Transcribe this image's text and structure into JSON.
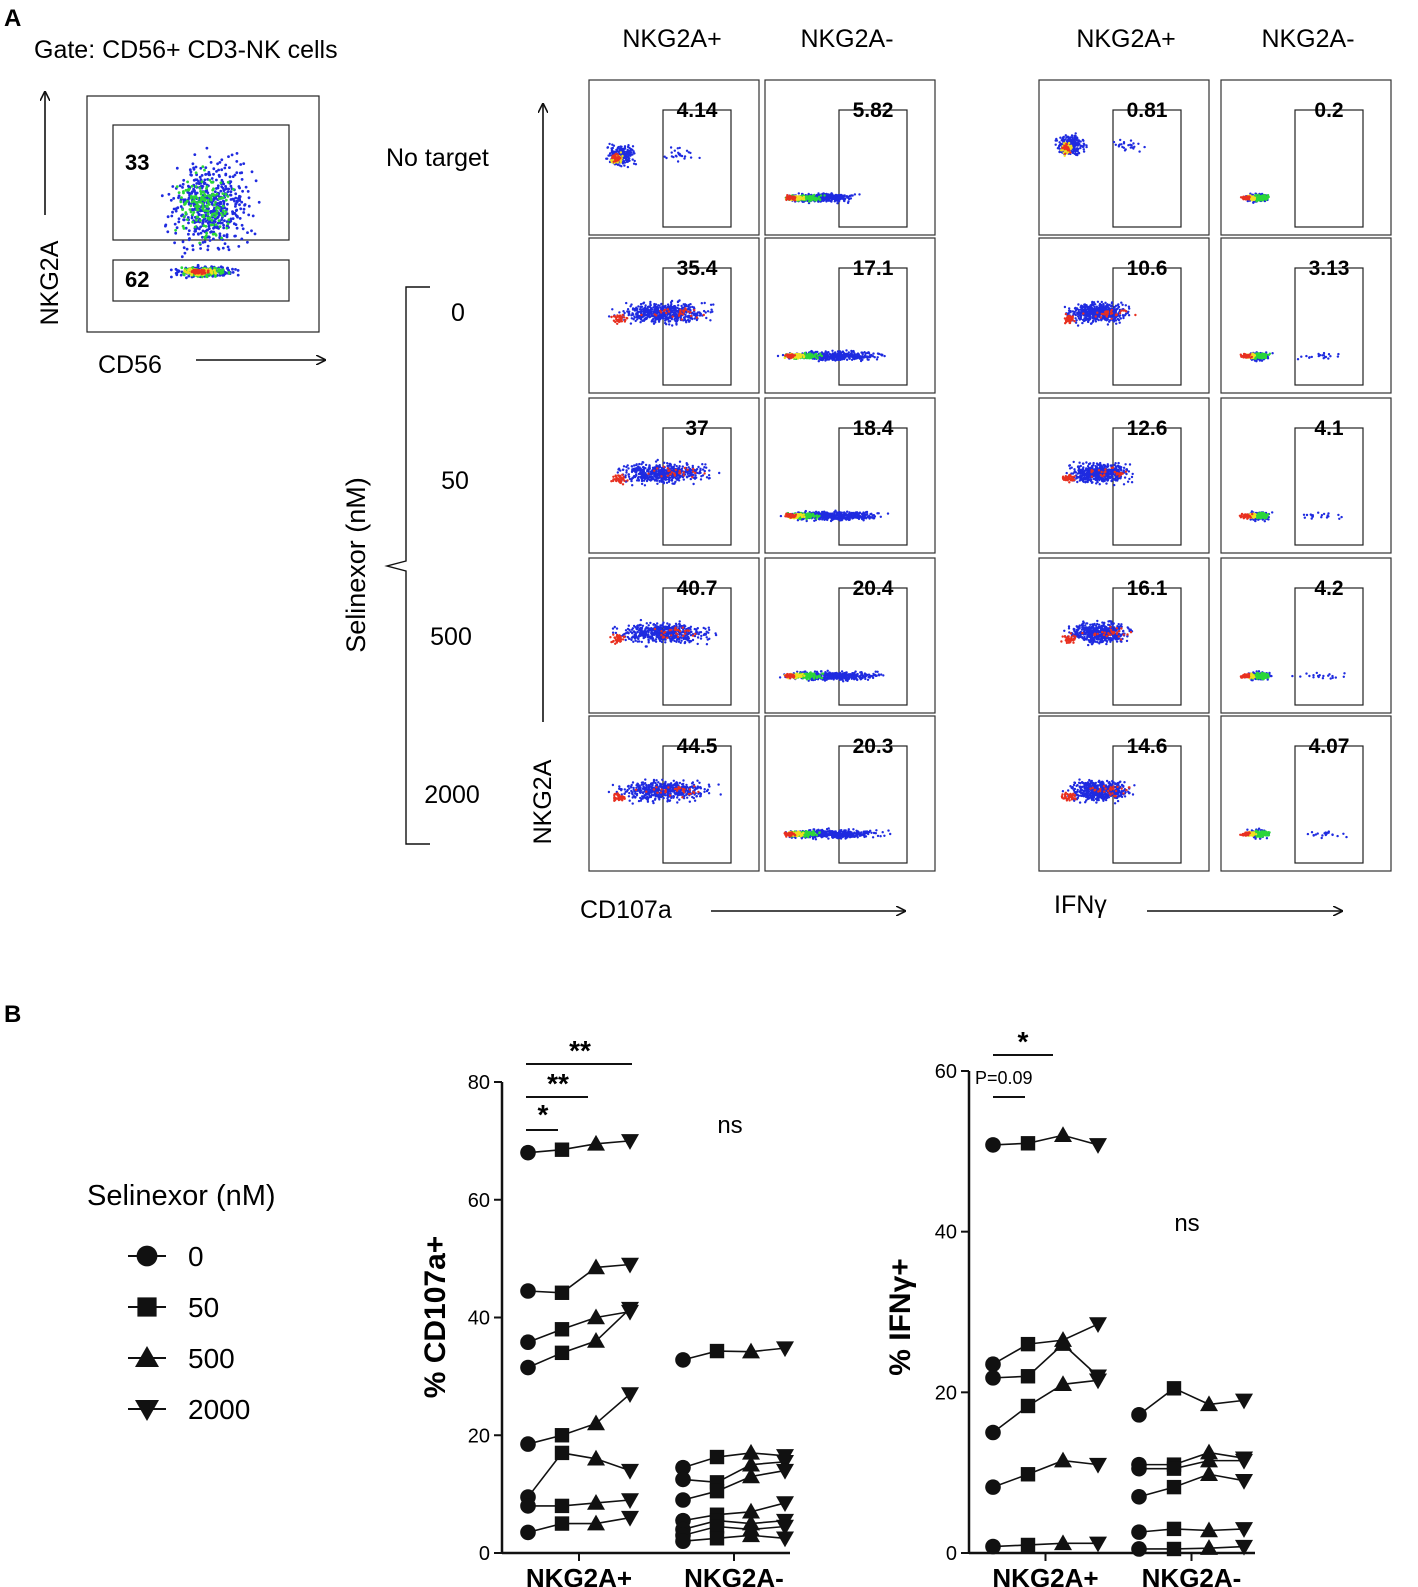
{
  "colors": {
    "ink": "#111111",
    "dot_blue": "#1f2be0",
    "dot_green": "#2bd63a",
    "dot_yellow": "#f0e020",
    "dot_red": "#e83020"
  },
  "panel_a": {
    "label": "A",
    "gate_title": "Gate: CD56+ CD3-NK cells",
    "gate_plot": {
      "y_axis": "NKG2A",
      "x_axis": "CD56",
      "upper_gate_pct": "33",
      "lower_gate_pct": "62"
    },
    "column_headers": [
      "NKG2A+",
      "NKG2A-",
      "NKG2A+",
      "NKG2A-"
    ],
    "row_labels": [
      "No target",
      "0",
      "50",
      "500",
      "2000"
    ],
    "bracket_label": "Selinexor (nM)",
    "y_axis_label": "NKG2A",
    "x_axis_left": "CD107a",
    "x_axis_right": "IFNγ",
    "gate_values": [
      [
        "4.14",
        "5.82",
        "0.81",
        "0.2"
      ],
      [
        "35.4",
        "17.1",
        "10.6",
        "3.13"
      ],
      [
        "37",
        "18.4",
        "12.6",
        "4.1"
      ],
      [
        "40.7",
        "20.4",
        "16.1",
        "4.2"
      ],
      [
        "44.5",
        "20.3",
        "14.6",
        "4.07"
      ]
    ]
  },
  "panel_b": {
    "label": "B",
    "legend_title": "Selinexor (nM)",
    "legend_items": [
      {
        "label": "0",
        "marker": "circle"
      },
      {
        "label": "50",
        "marker": "square"
      },
      {
        "label": "500",
        "marker": "triangle-up"
      },
      {
        "label": "2000",
        "marker": "triangle-down"
      }
    ]
  },
  "chart_data": [
    {
      "type": "scatter",
      "title": "",
      "ylabel": "% CD107a+",
      "xlabel": "",
      "ylim": [
        0,
        80
      ],
      "yticks": [
        0,
        20,
        40,
        60,
        80
      ],
      "categories": [
        "NKG2A+",
        "NKG2A-"
      ],
      "doses": [
        "0",
        "50",
        "500",
        "2000"
      ],
      "groups": [
        {
          "name": "NKG2A+",
          "subjects": [
            [
              68,
              68.5,
              69.5,
              70
            ],
            [
              44.5,
              44.2,
              48.5,
              49
            ],
            [
              35.8,
              38,
              40,
              41
            ],
            [
              31.5,
              34,
              36,
              41.5
            ],
            [
              18.5,
              20,
              22,
              27
            ],
            [
              9.5,
              17,
              16,
              14
            ],
            [
              8,
              8,
              8.5,
              9
            ],
            [
              3.5,
              5,
              5,
              6
            ]
          ]
        },
        {
          "name": "NKG2A-",
          "subjects": [
            [
              32.8,
              34.3,
              34.2,
              34.8
            ],
            [
              14.5,
              16.3,
              17,
              16.5
            ],
            [
              12.5,
              12,
              15,
              15.5
            ],
            [
              9,
              10.5,
              13,
              14
            ],
            [
              5.5,
              6.5,
              7,
              8.5
            ],
            [
              4,
              5.5,
              5,
              5.5
            ],
            [
              3,
              4.5,
              4,
              4.5
            ],
            [
              2,
              2.5,
              3,
              2.5
            ]
          ]
        }
      ],
      "annotations": [
        "*",
        "**",
        "**",
        "ns"
      ]
    },
    {
      "type": "scatter",
      "title": "",
      "ylabel": "% IFNγ+",
      "xlabel": "",
      "ylim": [
        0,
        60
      ],
      "yticks": [
        0,
        20,
        40,
        60
      ],
      "categories": [
        "NKG2A+",
        "NKG2A-"
      ],
      "doses": [
        "0",
        "50",
        "500",
        "2000"
      ],
      "groups": [
        {
          "name": "NKG2A+",
          "subjects": [
            [
              50.8,
              51,
              52,
              50.8
            ],
            [
              23.5,
              26,
              26.5,
              28.5
            ],
            [
              21.8,
              22,
              26,
              22
            ],
            [
              15,
              18.3,
              21,
              21.5
            ],
            [
              8.2,
              9.8,
              11.5,
              11
            ],
            [
              0.8,
              1,
              1.2,
              1.2
            ]
          ]
        },
        {
          "name": "NKG2A-",
          "subjects": [
            [
              17.2,
              20.5,
              18.5,
              19
            ],
            [
              11,
              11,
              12.5,
              11.8
            ],
            [
              10.5,
              10.5,
              11.5,
              11.5
            ],
            [
              7,
              8.2,
              9.8,
              9
            ],
            [
              2.6,
              3,
              2.8,
              3
            ],
            [
              0.5,
              0.5,
              0.6,
              0.8
            ]
          ]
        }
      ],
      "annotations": [
        "*",
        "P=0.09",
        "ns"
      ]
    }
  ]
}
